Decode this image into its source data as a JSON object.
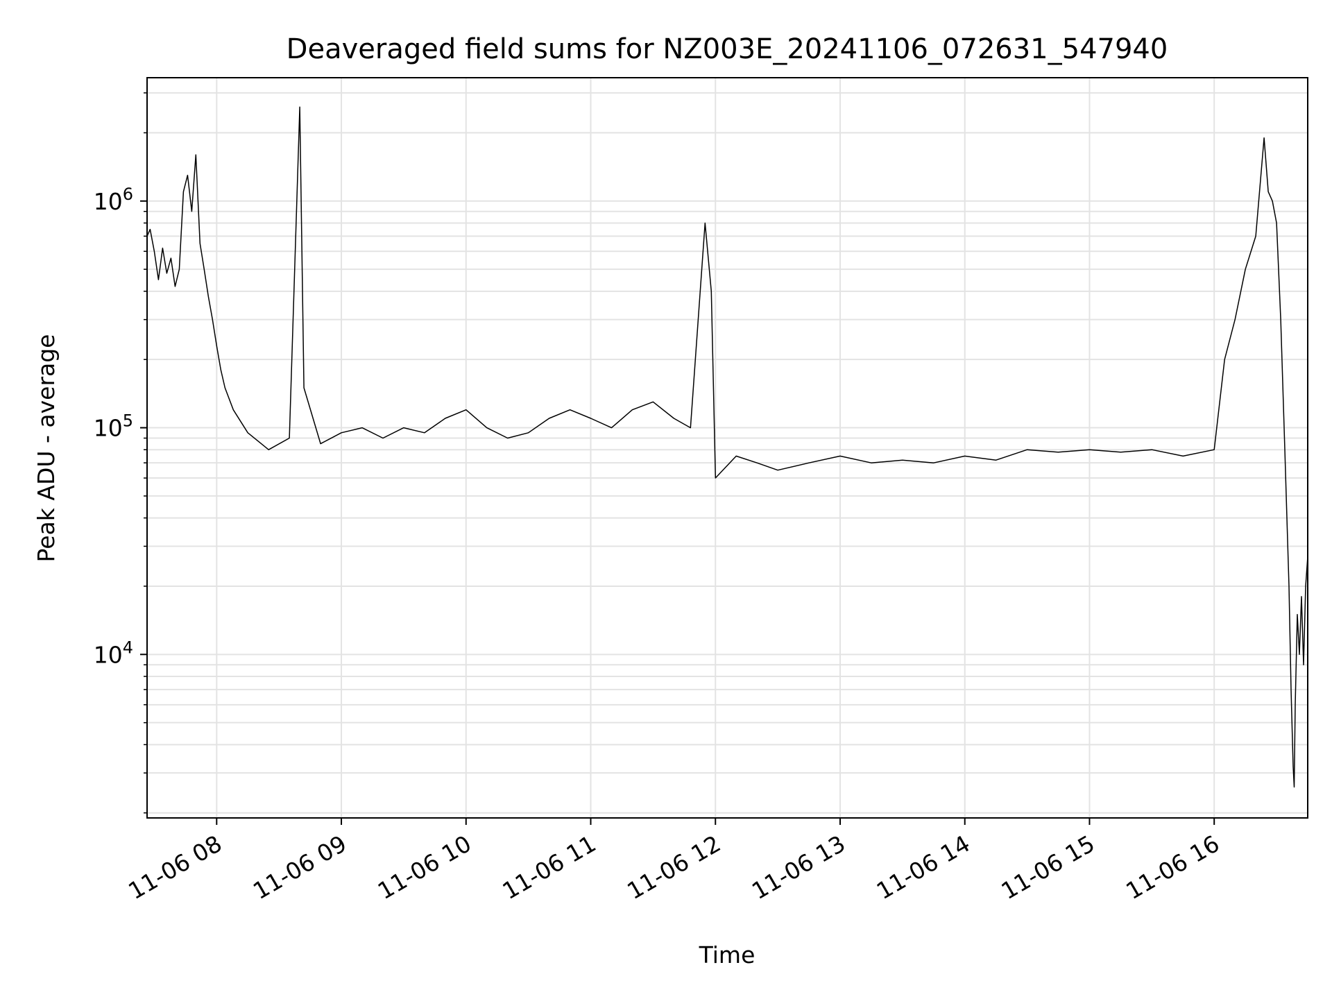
{
  "chart_data": {
    "type": "line",
    "title": "Deaveraged field sums for NZ003E_20241106_072631_547940",
    "xlabel": "Time",
    "ylabel": "Peak ADU - average",
    "x_scale": "time",
    "y_scale": "log",
    "xlim": [
      "2024-11-06T07:26:31",
      "2024-11-06T16:45:00"
    ],
    "ylim": [
      1900,
      3500000
    ],
    "grid": true,
    "legend": false,
    "x_tick_labels": [
      {
        "t": "2024-11-06T08:00:00",
        "label": "11-06 08"
      },
      {
        "t": "2024-11-06T09:00:00",
        "label": "11-06 09"
      },
      {
        "t": "2024-11-06T10:00:00",
        "label": "11-06 10"
      },
      {
        "t": "2024-11-06T11:00:00",
        "label": "11-06 11"
      },
      {
        "t": "2024-11-06T12:00:00",
        "label": "11-06 12"
      },
      {
        "t": "2024-11-06T13:00:00",
        "label": "11-06 13"
      },
      {
        "t": "2024-11-06T14:00:00",
        "label": "11-06 14"
      },
      {
        "t": "2024-11-06T15:00:00",
        "label": "11-06 15"
      },
      {
        "t": "2024-11-06T16:00:00",
        "label": "11-06 16"
      }
    ],
    "y_tick_labels": [
      {
        "value": 10000,
        "base": "10",
        "exp": "4"
      },
      {
        "value": 100000,
        "base": "10",
        "exp": "5"
      },
      {
        "value": 1000000,
        "base": "10",
        "exp": "6"
      }
    ],
    "series": [
      {
        "color": "#000000",
        "points": [
          [
            "2024-11-06T07:26:31",
            700000
          ],
          [
            "2024-11-06T07:28:00",
            750000
          ],
          [
            "2024-11-06T07:30:00",
            600000
          ],
          [
            "2024-11-06T07:32:00",
            450000
          ],
          [
            "2024-11-06T07:34:00",
            620000
          ],
          [
            "2024-11-06T07:36:00",
            480000
          ],
          [
            "2024-11-06T07:38:00",
            560000
          ],
          [
            "2024-11-06T07:40:00",
            420000
          ],
          [
            "2024-11-06T07:42:00",
            500000
          ],
          [
            "2024-11-06T07:44:00",
            1100000
          ],
          [
            "2024-11-06T07:46:00",
            1300000
          ],
          [
            "2024-11-06T07:48:00",
            900000
          ],
          [
            "2024-11-06T07:50:00",
            1600000
          ],
          [
            "2024-11-06T07:52:00",
            650000
          ],
          [
            "2024-11-06T07:54:00",
            500000
          ],
          [
            "2024-11-06T07:56:00",
            380000
          ],
          [
            "2024-11-06T07:58:00",
            300000
          ],
          [
            "2024-11-06T08:00:00",
            230000
          ],
          [
            "2024-11-06T08:02:00",
            180000
          ],
          [
            "2024-11-06T08:04:00",
            150000
          ],
          [
            "2024-11-06T08:08:00",
            120000
          ],
          [
            "2024-11-06T08:15:00",
            95000
          ],
          [
            "2024-11-06T08:25:00",
            80000
          ],
          [
            "2024-11-06T08:35:00",
            90000
          ],
          [
            "2024-11-06T08:40:00",
            2600000
          ],
          [
            "2024-11-06T08:42:00",
            150000
          ],
          [
            "2024-11-06T08:50:00",
            85000
          ],
          [
            "2024-11-06T09:00:00",
            95000
          ],
          [
            "2024-11-06T09:10:00",
            100000
          ],
          [
            "2024-11-06T09:20:00",
            90000
          ],
          [
            "2024-11-06T09:30:00",
            100000
          ],
          [
            "2024-11-06T09:40:00",
            95000
          ],
          [
            "2024-11-06T09:50:00",
            110000
          ],
          [
            "2024-11-06T10:00:00",
            120000
          ],
          [
            "2024-11-06T10:10:00",
            100000
          ],
          [
            "2024-11-06T10:20:00",
            90000
          ],
          [
            "2024-11-06T10:30:00",
            95000
          ],
          [
            "2024-11-06T10:40:00",
            110000
          ],
          [
            "2024-11-06T10:50:00",
            120000
          ],
          [
            "2024-11-06T11:00:00",
            110000
          ],
          [
            "2024-11-06T11:10:00",
            100000
          ],
          [
            "2024-11-06T11:20:00",
            120000
          ],
          [
            "2024-11-06T11:30:00",
            130000
          ],
          [
            "2024-11-06T11:40:00",
            110000
          ],
          [
            "2024-11-06T11:48:00",
            100000
          ],
          [
            "2024-11-06T11:55:00",
            800000
          ],
          [
            "2024-11-06T11:58:00",
            400000
          ],
          [
            "2024-11-06T12:00:00",
            60000
          ],
          [
            "2024-11-06T12:10:00",
            75000
          ],
          [
            "2024-11-06T12:20:00",
            70000
          ],
          [
            "2024-11-06T12:30:00",
            65000
          ],
          [
            "2024-11-06T12:45:00",
            70000
          ],
          [
            "2024-11-06T13:00:00",
            75000
          ],
          [
            "2024-11-06T13:15:00",
            70000
          ],
          [
            "2024-11-06T13:30:00",
            72000
          ],
          [
            "2024-11-06T13:45:00",
            70000
          ],
          [
            "2024-11-06T14:00:00",
            75000
          ],
          [
            "2024-11-06T14:15:00",
            72000
          ],
          [
            "2024-11-06T14:30:00",
            80000
          ],
          [
            "2024-11-06T14:45:00",
            78000
          ],
          [
            "2024-11-06T15:00:00",
            80000
          ],
          [
            "2024-11-06T15:15:00",
            78000
          ],
          [
            "2024-11-06T15:30:00",
            80000
          ],
          [
            "2024-11-06T15:45:00",
            75000
          ],
          [
            "2024-11-06T16:00:00",
            80000
          ],
          [
            "2024-11-06T16:05:00",
            200000
          ],
          [
            "2024-11-06T16:10:00",
            300000
          ],
          [
            "2024-11-06T16:15:00",
            500000
          ],
          [
            "2024-11-06T16:20:00",
            700000
          ],
          [
            "2024-11-06T16:24:00",
            1900000
          ],
          [
            "2024-11-06T16:26:00",
            1100000
          ],
          [
            "2024-11-06T16:28:00",
            1000000
          ],
          [
            "2024-11-06T16:30:00",
            800000
          ],
          [
            "2024-11-06T16:32:00",
            300000
          ],
          [
            "2024-11-06T16:34:00",
            80000
          ],
          [
            "2024-11-06T16:36:00",
            20000
          ],
          [
            "2024-11-06T16:37:00",
            7000
          ],
          [
            "2024-11-06T16:38:00",
            3200
          ],
          [
            "2024-11-06T16:38:30",
            2600
          ],
          [
            "2024-11-06T16:39:00",
            6000
          ],
          [
            "2024-11-06T16:40:00",
            15000
          ],
          [
            "2024-11-06T16:41:00",
            10000
          ],
          [
            "2024-11-06T16:42:00",
            18000
          ],
          [
            "2024-11-06T16:43:00",
            9000
          ],
          [
            "2024-11-06T16:44:00",
            20000
          ],
          [
            "2024-11-06T16:45:00",
            27000
          ]
        ]
      }
    ]
  }
}
